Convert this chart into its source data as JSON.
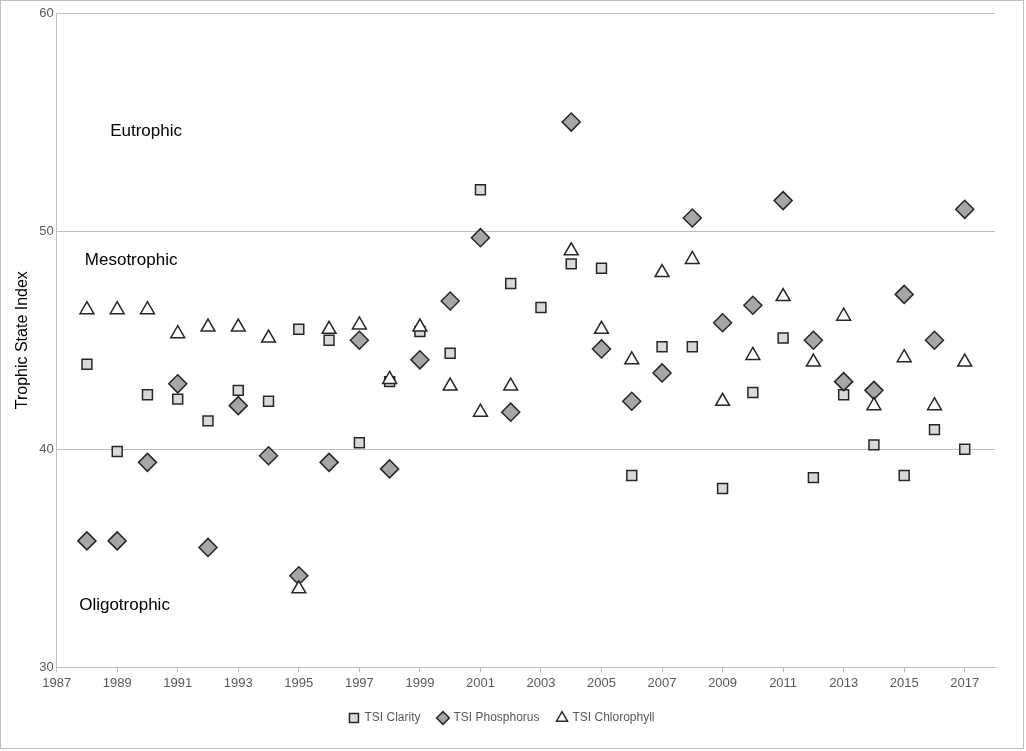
{
  "chart_data": {
    "type": "scatter",
    "ylabel": "Trophic State Index",
    "x": [
      1988,
      1989,
      1990,
      1991,
      1992,
      1993,
      1994,
      1995,
      1996,
      1997,
      1998,
      1999,
      2000,
      2001,
      2002,
      2003,
      2004,
      2005,
      2006,
      2007,
      2008,
      2009,
      2010,
      2011,
      2012,
      2013,
      2014,
      2015,
      2016,
      2017
    ],
    "series": [
      {
        "name": "TSI Clarity",
        "color": "#d9d9d9",
        "marker": "square",
        "values": [
          43.9,
          39.9,
          42.5,
          42.3,
          41.3,
          42.7,
          42.2,
          45.5,
          45.0,
          40.3,
          43.1,
          45.4,
          44.4,
          51.9,
          47.6,
          46.5,
          48.5,
          48.3,
          38.8,
          44.7,
          44.7,
          38.2,
          42.6,
          45.1,
          38.7,
          42.5,
          40.2,
          38.8,
          40.9,
          40.0
        ]
      },
      {
        "name": "TSI Phosphorus",
        "color": "#a6a6a6",
        "marker": "diamond",
        "values": [
          35.8,
          35.8,
          39.4,
          43.0,
          35.5,
          42.0,
          39.7,
          34.2,
          39.4,
          45.0,
          39.1,
          44.1,
          46.8,
          49.7,
          41.7,
          null,
          55.0,
          44.6,
          42.2,
          43.5,
          50.6,
          45.8,
          46.6,
          51.4,
          45.0,
          43.1,
          42.7,
          47.1,
          45.0,
          51.0
        ]
      },
      {
        "name": "TSI Chlorophyll",
        "color": "#ffffff",
        "marker": "triangle",
        "values": [
          46.4,
          46.4,
          46.4,
          45.3,
          45.6,
          45.6,
          45.1,
          33.6,
          45.5,
          45.7,
          43.2,
          45.6,
          42.9,
          41.7,
          42.9,
          null,
          49.1,
          45.5,
          44.1,
          48.1,
          48.7,
          42.2,
          44.3,
          47.0,
          44.0,
          46.1,
          42.0,
          44.2,
          42.0,
          44.0
        ]
      }
    ],
    "xlim": [
      1987,
      2018
    ],
    "xticks": [
      1987,
      1989,
      1991,
      1993,
      1995,
      1997,
      1999,
      2001,
      2003,
      2005,
      2007,
      2009,
      2011,
      2013,
      2015,
      2017
    ],
    "ylim": [
      30,
      60
    ],
    "yticks": [
      30,
      40,
      50,
      60
    ],
    "grid": "y",
    "legend": "bottom",
    "annotations": [
      "Eutrophic",
      "Mesotrophic",
      "Oligotrophic"
    ]
  }
}
